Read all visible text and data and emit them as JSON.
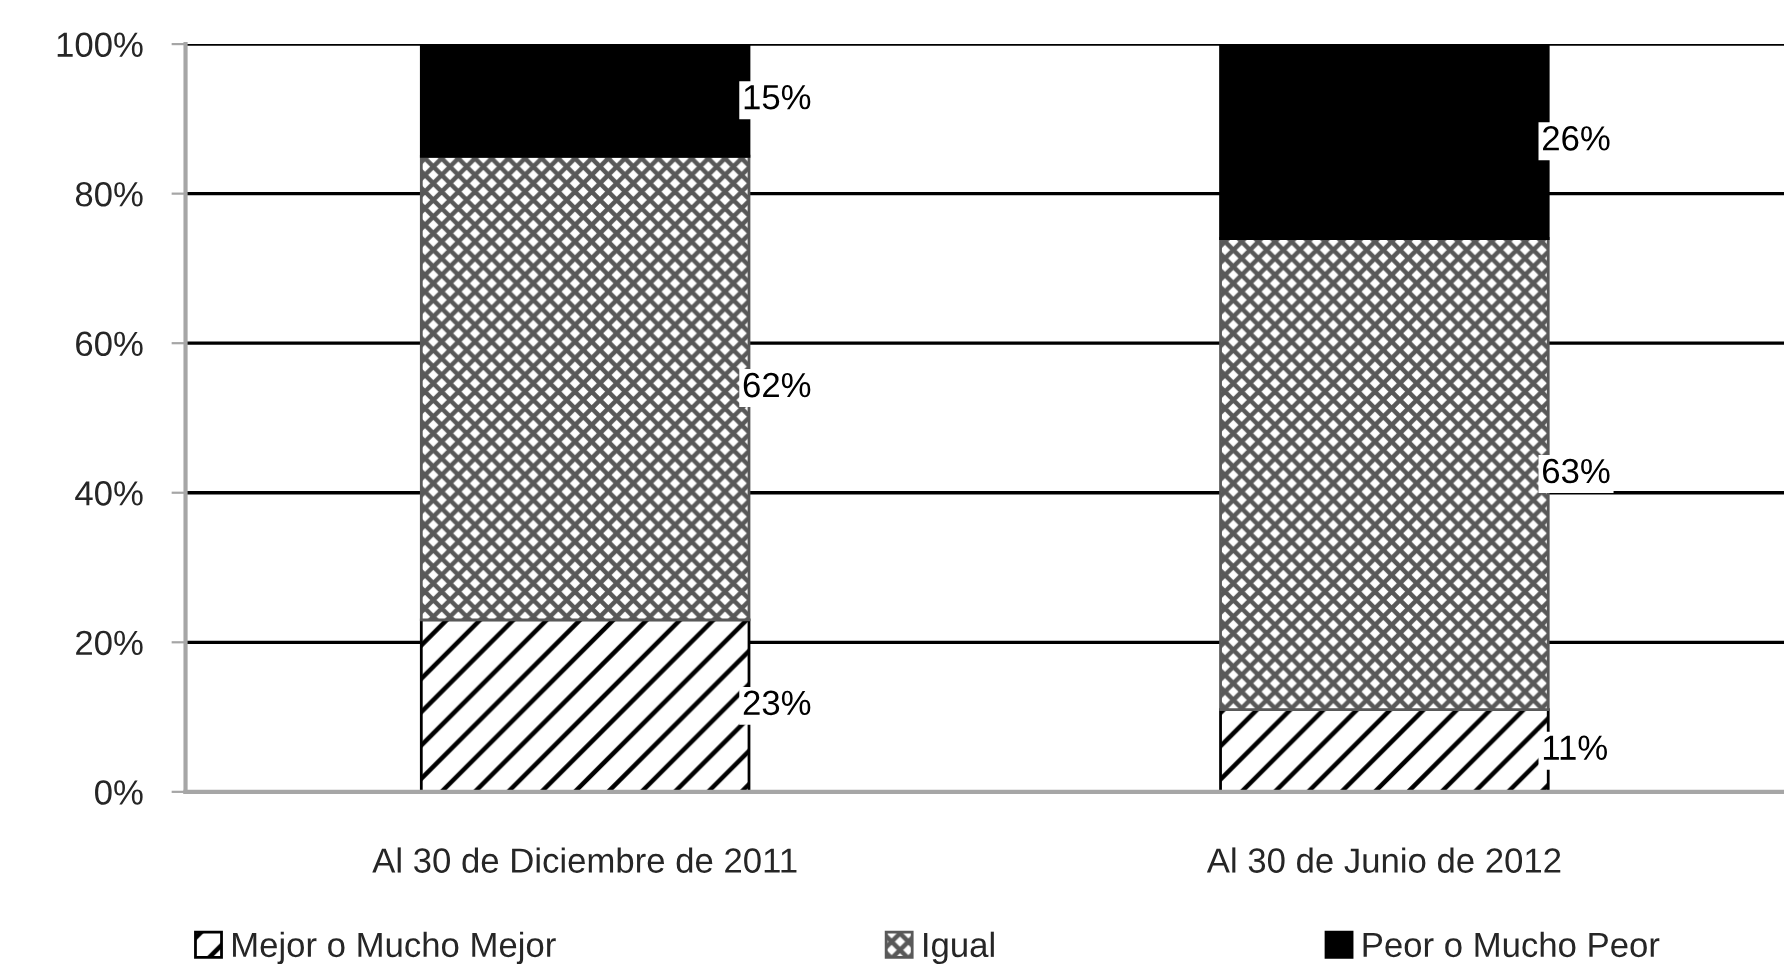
{
  "chart_data": {
    "type": "bar",
    "stacked": true,
    "categories": [
      "Al 30 de Diciembre de 2011",
      "Al 30 de Junio de 2012"
    ],
    "series": [
      {
        "name": "Mejor o Mucho Mejor",
        "color": "#000000",
        "values": [
          23,
          11
        ],
        "value_labels": [
          "23%",
          "11%"
        ]
      },
      {
        "name": "Igual",
        "color": "#595959",
        "values": [
          62,
          63
        ],
        "value_labels": [
          "62%",
          "63%"
        ]
      },
      {
        "name": "Peor o Mucho Peor",
        "color": "#000000",
        "values": [
          15,
          26
        ],
        "value_labels": [
          "15%",
          "26%"
        ]
      }
    ],
    "ylim": [
      0,
      100
    ],
    "yticks": [
      {
        "value": 0,
        "label": "0%"
      },
      {
        "value": 20,
        "label": "20%"
      },
      {
        "value": 40,
        "label": "40%"
      },
      {
        "value": 60,
        "label": "60%"
      },
      {
        "value": 80,
        "label": "80%"
      },
      {
        "value": 100,
        "label": "100%"
      }
    ],
    "grid": "y",
    "legend": "bottom"
  }
}
